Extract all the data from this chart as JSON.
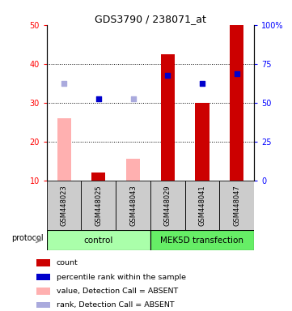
{
  "title": "GDS3790 / 238071_at",
  "samples": [
    "GSM448023",
    "GSM448025",
    "GSM448043",
    "GSM448029",
    "GSM448041",
    "GSM448047"
  ],
  "bar_values_present": [
    null,
    12.0,
    null,
    42.5,
    30.0,
    50.0
  ],
  "bar_values_absent": [
    26.0,
    null,
    15.5,
    null,
    null,
    null
  ],
  "rank_present_blue": [
    null,
    31.0,
    null,
    37.0,
    35.0,
    37.5
  ],
  "rank_absent_lightblue": [
    35.0,
    null,
    31.0,
    null,
    null,
    null
  ],
  "bar_color_present": "#cc0000",
  "bar_color_absent": "#ffb0b0",
  "dot_color_present": "#0000cc",
  "dot_color_absent": "#aaaadd",
  "ylim": [
    10,
    50
  ],
  "yticks": [
    10,
    20,
    30,
    40,
    50
  ],
  "grid_lines": [
    20,
    30,
    40
  ],
  "yright_labels": [
    "0",
    "25",
    "50",
    "75",
    "100%"
  ],
  "yright_ticks": [
    0,
    25,
    50,
    75,
    100
  ],
  "control_color": "#aaffaa",
  "mek_color": "#66ee66",
  "sample_box_color": "#cccccc",
  "legend_items": [
    {
      "color": "#cc0000",
      "label": "count"
    },
    {
      "color": "#0000cc",
      "label": "percentile rank within the sample"
    },
    {
      "color": "#ffb0b0",
      "label": "value, Detection Call = ABSENT"
    },
    {
      "color": "#aaaadd",
      "label": "rank, Detection Call = ABSENT"
    }
  ]
}
